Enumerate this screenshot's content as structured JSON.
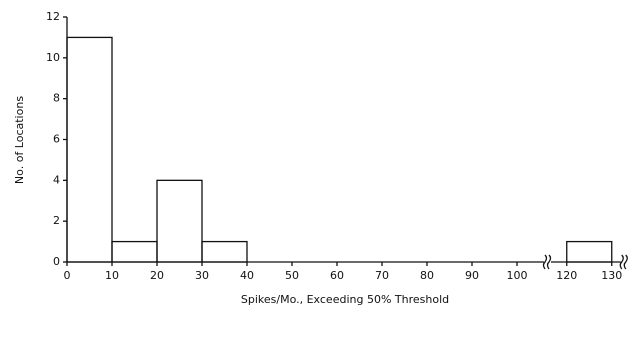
{
  "chart_data": {
    "type": "histogram",
    "x_label": "Spikes/Mo., Exceeding 50% Threshold",
    "y_label": "No. of Locations",
    "bins": [
      0,
      10,
      20,
      30,
      40,
      120,
      130
    ],
    "counts": [
      11,
      1,
      4,
      1,
      0,
      1
    ],
    "xlim": [
      0,
      132
    ],
    "xbreak": [
      106,
      116.5
    ],
    "xticks": [
      0,
      10,
      20,
      30,
      40,
      50,
      60,
      70,
      80,
      90,
      100,
      120,
      130
    ],
    "ylim": [
      0,
      12
    ],
    "yticks": [
      0,
      2,
      4,
      6,
      8,
      10,
      12
    ],
    "color": "#111111",
    "grid": false
  }
}
